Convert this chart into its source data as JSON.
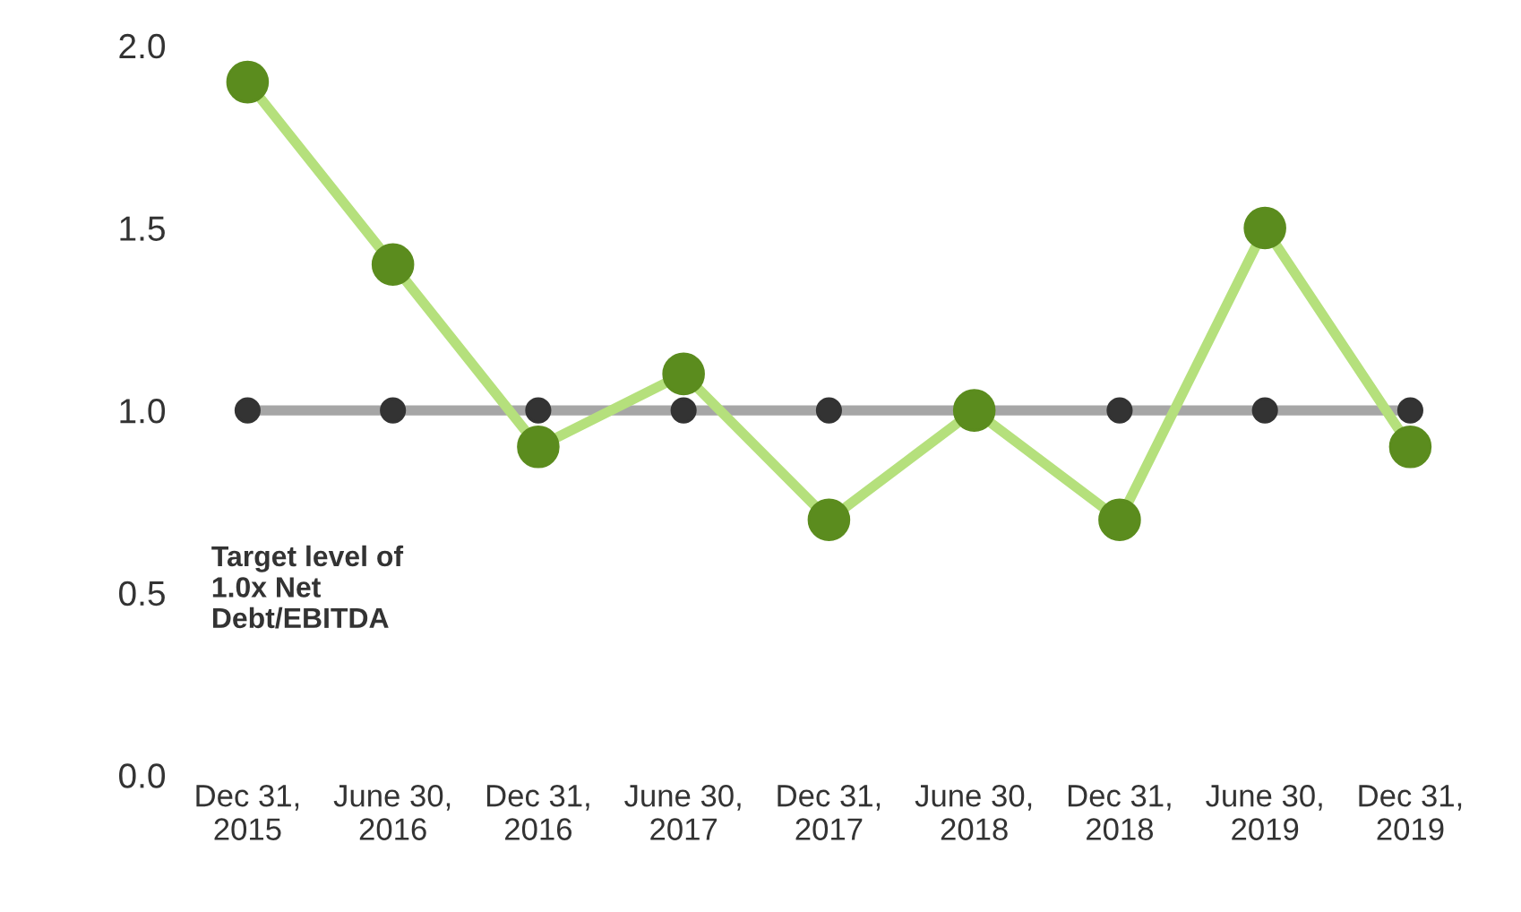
{
  "chart_data": {
    "type": "line",
    "categories": [
      "Dec 31,\n2015",
      "June 30,\n2016",
      "Dec 31,\n2016",
      "June 30,\n2017",
      "Dec 31,\n2017",
      "June 30,\n2018",
      "Dec 31,\n2018",
      "June 30,\n2019",
      "Dec 31,\n2019"
    ],
    "series": [
      {
        "color": "#a6a6a6",
        "colors": [
          "#333333",
          "#333333",
          "#333333",
          "#333333",
          "#333333",
          "#333333",
          "#333333",
          "#333333",
          "#333333"
        ],
        "values": [
          1.0,
          1.0,
          1.0,
          1.0,
          1.0,
          1.0,
          1.0,
          1.0,
          1.0
        ]
      },
      {
        "color": "#b5e07c",
        "colors": [
          "#5b8c1e",
          "#5b8c1e",
          "#5b8c1e",
          "#5b8c1e",
          "#5b8c1e",
          "#5b8c1e",
          "#5b8c1e",
          "#5b8c1e",
          "#5b8c1e"
        ],
        "values": [
          1.9,
          1.4,
          0.9,
          1.1,
          0.7,
          1.0,
          0.7,
          1.5,
          0.9
        ]
      }
    ],
    "ylim": [
      0,
      2.0
    ],
    "yticks": [
      {
        "value": 0,
        "label": "0.0"
      },
      {
        "value": 0.5,
        "label": "0.5"
      },
      {
        "value": 1.0,
        "label": "1.0"
      },
      {
        "value": 1.5,
        "label": "1.5"
      },
      {
        "value": 2.0,
        "label": "2.0"
      }
    ],
    "marker": "circle",
    "line_style": "solid",
    "grid": false,
    "legend": false,
    "annotations": [
      "Target level of\n1.0x Net\nDebt/EBITDA"
    ]
  }
}
